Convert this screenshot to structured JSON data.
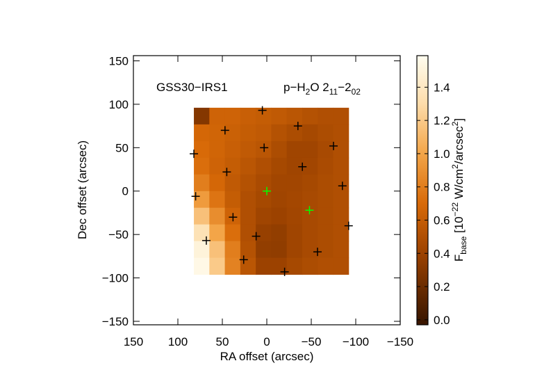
{
  "chart_data": {
    "type": "heatmap",
    "annotations": [
      "GSS30−IRS1"
    ],
    "line_label": [
      "p−H",
      "2",
      "O 2",
      "11",
      "−2",
      "02"
    ],
    "x_label": "RA offset (arcsec)",
    "y_label": "Dec offset (arcsec)",
    "colorbar_label": [
      "F",
      "base",
      " [10",
      "−22",
      " W/cm",
      "2",
      "/arcsec",
      "2",
      "]"
    ],
    "xlim": [
      150,
      -150
    ],
    "ylim": [
      -154,
      156
    ],
    "xticks": [
      150,
      100,
      50,
      0,
      {
        "value": -50,
        "label": "−50"
      },
      {
        "value": -100,
        "label": "−100"
      },
      {
        "value": -150,
        "label": "−150"
      }
    ],
    "yticks": [
      150,
      100,
      50,
      0,
      {
        "value": -50,
        "label": "−50"
      },
      {
        "value": -100,
        "label": "−100"
      },
      {
        "value": -150,
        "label": "−150"
      }
    ],
    "x_extent": [
      82,
      -92
    ],
    "y_extent": [
      96,
      -96
    ],
    "z": [
      [
        0.3,
        0.65,
        0.65,
        0.62,
        0.6,
        0.58,
        0.55,
        0.52,
        0.5,
        0.5
      ],
      [
        0.68,
        0.66,
        0.63,
        0.6,
        0.58,
        0.52,
        0.48,
        0.45,
        0.48,
        0.5
      ],
      [
        0.7,
        0.66,
        0.62,
        0.58,
        0.55,
        0.48,
        0.42,
        0.42,
        0.46,
        0.5
      ],
      [
        0.72,
        0.65,
        0.6,
        0.55,
        0.5,
        0.45,
        0.42,
        0.43,
        0.47,
        0.5
      ],
      [
        0.8,
        0.68,
        0.58,
        0.52,
        0.47,
        0.43,
        0.43,
        0.45,
        0.48,
        0.5
      ],
      [
        0.95,
        0.75,
        0.6,
        0.5,
        0.45,
        0.42,
        0.44,
        0.46,
        0.48,
        0.5
      ],
      [
        1.15,
        0.88,
        0.65,
        0.5,
        0.42,
        0.4,
        0.43,
        0.46,
        0.48,
        0.5
      ],
      [
        1.35,
        1.0,
        0.72,
        0.5,
        0.38,
        0.36,
        0.42,
        0.46,
        0.48,
        0.5
      ],
      [
        1.5,
        1.15,
        0.8,
        0.52,
        0.36,
        0.35,
        0.42,
        0.46,
        0.48,
        0.5
      ],
      [
        1.55,
        1.2,
        0.82,
        0.55,
        0.4,
        0.4,
        0.45,
        0.48,
        0.5,
        0.5
      ]
    ],
    "zlim": [
      -0.03,
      1.59
    ],
    "zticks": [
      {
        "value": 0,
        "label": "0.0"
      },
      0.2,
      0.4,
      0.6,
      0.8,
      {
        "value": 1,
        "label": "1.0"
      },
      1.2,
      1.4
    ],
    "colormap": [
      [
        0,
        "#3c1700"
      ],
      [
        0.4,
        "#9c4200"
      ],
      [
        0.7,
        "#d86a08"
      ],
      [
        1.0,
        "#f3a548"
      ],
      [
        1.3,
        "#fddcaa"
      ],
      [
        1.59,
        "#fffdf0"
      ]
    ],
    "series": [
      {
        "color": "#000000",
        "x": [
          82,
          47,
          5,
          -35,
          -75,
          3,
          45,
          -40,
          -85,
          80,
          38,
          -92,
          12,
          -57,
          68,
          26,
          -20
        ],
        "y": [
          43,
          70,
          93,
          75,
          52,
          50,
          22,
          28,
          6,
          -6,
          -30,
          -40,
          -52,
          -70,
          -57,
          -79,
          -93
        ]
      },
      {
        "color": "#00ff00",
        "x": [
          0,
          -48
        ],
        "y": [
          0,
          -22
        ]
      }
    ]
  }
}
